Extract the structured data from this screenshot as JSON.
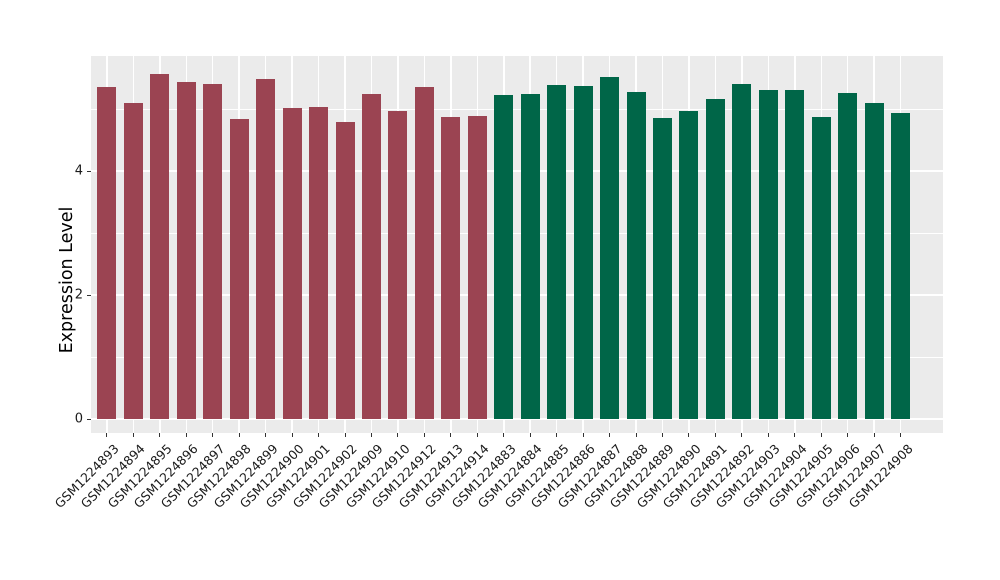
{
  "chart_data": {
    "type": "bar",
    "title": "",
    "xlabel": "",
    "ylabel": "Expression Level",
    "ylim": [
      0,
      5.85
    ],
    "yticks": [
      {
        "value": 0,
        "label": "0"
      },
      {
        "value": 2,
        "label": "2"
      },
      {
        "value": 4,
        "label": "4"
      }
    ],
    "minor_yticks": [
      1,
      3,
      5
    ],
    "grid": "white major+minor horizontal, white vertical at category centers, on gray panel",
    "legend_position": "none",
    "colors": {
      "groupA": "#9B4452",
      "groupB": "#006648"
    },
    "panel_background": "#EBEBEB",
    "bars": [
      {
        "label": "GSM1224893",
        "value": 5.35,
        "group": "groupA"
      },
      {
        "label": "GSM1224894",
        "value": 5.09,
        "group": "groupA"
      },
      {
        "label": "GSM1224895",
        "value": 5.56,
        "group": "groupA"
      },
      {
        "label": "GSM1224896",
        "value": 5.43,
        "group": "groupA"
      },
      {
        "label": "GSM1224897",
        "value": 5.4,
        "group": "groupA"
      },
      {
        "label": "GSM1224898",
        "value": 4.84,
        "group": "groupA"
      },
      {
        "label": "GSM1224899",
        "value": 5.48,
        "group": "groupA"
      },
      {
        "label": "GSM1224900",
        "value": 5.01,
        "group": "groupA"
      },
      {
        "label": "GSM1224901",
        "value": 5.03,
        "group": "groupA"
      },
      {
        "label": "GSM1224902",
        "value": 4.79,
        "group": "groupA"
      },
      {
        "label": "GSM1224909",
        "value": 5.25,
        "group": "groupA"
      },
      {
        "label": "GSM1224910",
        "value": 4.96,
        "group": "groupA"
      },
      {
        "label": "GSM1224912",
        "value": 5.35,
        "group": "groupA"
      },
      {
        "label": "GSM1224913",
        "value": 4.87,
        "group": "groupA"
      },
      {
        "label": "GSM1224914",
        "value": 4.88,
        "group": "groupA"
      },
      {
        "label": "GSM1224883",
        "value": 5.22,
        "group": "groupB"
      },
      {
        "label": "GSM1224884",
        "value": 5.24,
        "group": "groupB"
      },
      {
        "label": "GSM1224885",
        "value": 5.38,
        "group": "groupB"
      },
      {
        "label": "GSM1224886",
        "value": 5.37,
        "group": "groupB"
      },
      {
        "label": "GSM1224887",
        "value": 5.52,
        "group": "groupB"
      },
      {
        "label": "GSM1224888",
        "value": 5.27,
        "group": "groupB"
      },
      {
        "label": "GSM1224889",
        "value": 4.85,
        "group": "groupB"
      },
      {
        "label": "GSM1224890",
        "value": 4.96,
        "group": "groupB"
      },
      {
        "label": "GSM1224891",
        "value": 5.16,
        "group": "groupB"
      },
      {
        "label": "GSM1224892",
        "value": 5.41,
        "group": "groupB"
      },
      {
        "label": "GSM1224903",
        "value": 5.31,
        "group": "groupB"
      },
      {
        "label": "GSM1224904",
        "value": 5.3,
        "group": "groupB"
      },
      {
        "label": "GSM1224905",
        "value": 4.87,
        "group": "groupB"
      },
      {
        "label": "GSM1224906",
        "value": 5.26,
        "group": "groupB"
      },
      {
        "label": "GSM1224907",
        "value": 5.09,
        "group": "groupB"
      },
      {
        "label": "GSM1224908",
        "value": 4.93,
        "group": "groupB"
      }
    ]
  }
}
